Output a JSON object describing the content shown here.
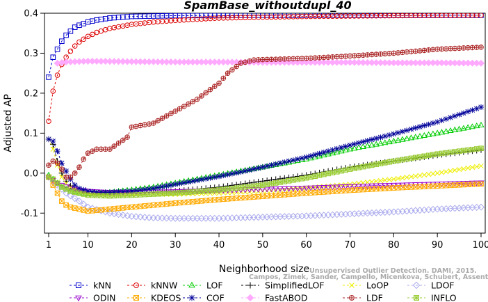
{
  "chart_data": {
    "type": "line",
    "title": "SpamBase_withoutdupl_40",
    "xlabel": "Neighborhood size",
    "ylabel": "Adjusted AP",
    "xlim": [
      1,
      100
    ],
    "ylim": [
      -0.15,
      0.4
    ],
    "xticks": [
      1,
      10,
      20,
      30,
      40,
      50,
      60,
      70,
      80,
      90,
      100
    ],
    "yticks": [
      -0.1,
      0.0,
      0.1,
      0.2,
      0.3,
      0.4
    ],
    "xtick_labels": [
      "1",
      "10",
      "20",
      "30",
      "40",
      "50",
      "60",
      "70",
      "80",
      "90",
      "100"
    ],
    "ytick_labels": [
      "-0.1",
      "0.0",
      "0.1",
      "0.2",
      "0.3",
      "0.4"
    ],
    "grid": false,
    "legend_position": "bottom",
    "series": [
      {
        "name": "kNN",
        "color": "#0000cc",
        "marker": "square",
        "linestyle": "dashed",
        "points": [
          [
            1,
            0.24
          ],
          [
            2,
            0.29
          ],
          [
            3,
            0.31
          ],
          [
            4,
            0.33
          ],
          [
            5,
            0.345
          ],
          [
            6,
            0.355
          ],
          [
            7,
            0.365
          ],
          [
            8,
            0.37
          ],
          [
            10,
            0.378
          ],
          [
            12,
            0.383
          ],
          [
            15,
            0.388
          ],
          [
            20,
            0.392
          ],
          [
            30,
            0.394
          ],
          [
            50,
            0.395
          ],
          [
            100,
            0.395
          ]
        ]
      },
      {
        "name": "kNNW",
        "color": "#dd0000",
        "marker": "circle",
        "linestyle": "dashed",
        "points": [
          [
            1,
            0.13
          ],
          [
            2,
            0.205
          ],
          [
            3,
            0.245
          ],
          [
            4,
            0.272
          ],
          [
            5,
            0.29
          ],
          [
            6,
            0.305
          ],
          [
            7,
            0.318
          ],
          [
            8,
            0.328
          ],
          [
            10,
            0.342
          ],
          [
            12,
            0.352
          ],
          [
            15,
            0.362
          ],
          [
            20,
            0.372
          ],
          [
            25,
            0.378
          ],
          [
            30,
            0.382
          ],
          [
            40,
            0.388
          ],
          [
            50,
            0.39
          ],
          [
            60,
            0.392
          ],
          [
            80,
            0.394
          ],
          [
            100,
            0.395
          ]
        ]
      },
      {
        "name": "LOF",
        "color": "#00cc00",
        "marker": "triangle-up",
        "linestyle": "dashed",
        "points": [
          [
            1,
            -0.005
          ],
          [
            2,
            -0.015
          ],
          [
            3,
            -0.025
          ],
          [
            4,
            -0.035
          ],
          [
            5,
            -0.04
          ],
          [
            6,
            -0.045
          ],
          [
            8,
            -0.05
          ],
          [
            10,
            -0.052
          ],
          [
            12,
            -0.05
          ],
          [
            15,
            -0.048
          ],
          [
            20,
            -0.042
          ],
          [
            25,
            -0.035
          ],
          [
            30,
            -0.025
          ],
          [
            35,
            -0.015
          ],
          [
            40,
            -0.005
          ],
          [
            45,
            0.005
          ],
          [
            50,
            0.015
          ],
          [
            60,
            0.035
          ],
          [
            70,
            0.06
          ],
          [
            80,
            0.08
          ],
          [
            90,
            0.1
          ],
          [
            100,
            0.12
          ]
        ]
      },
      {
        "name": "SimplifiedLOF",
        "color": "#000000",
        "marker": "plus",
        "linestyle": "dashed",
        "points": [
          [
            1,
            0.085
          ],
          [
            2,
            0.072
          ],
          [
            3,
            0.03
          ],
          [
            4,
            0.0
          ],
          [
            5,
            -0.02
          ],
          [
            6,
            -0.032
          ],
          [
            7,
            -0.04
          ],
          [
            8,
            -0.045
          ],
          [
            10,
            -0.05
          ],
          [
            12,
            -0.052
          ],
          [
            15,
            -0.052
          ],
          [
            20,
            -0.05
          ],
          [
            30,
            -0.045
          ],
          [
            40,
            -0.035
          ],
          [
            50,
            -0.02
          ],
          [
            60,
            -0.005
          ],
          [
            70,
            0.015
          ],
          [
            80,
            0.03
          ],
          [
            90,
            0.045
          ],
          [
            100,
            0.058
          ]
        ]
      },
      {
        "name": "LoOP",
        "color": "#eeee00",
        "marker": "x",
        "linestyle": "dashed",
        "points": [
          [
            1,
            0.085
          ],
          [
            2,
            0.06
          ],
          [
            3,
            0.02
          ],
          [
            4,
            -0.01
          ],
          [
            5,
            -0.025
          ],
          [
            6,
            -0.035
          ],
          [
            8,
            -0.045
          ],
          [
            10,
            -0.05
          ],
          [
            15,
            -0.052
          ],
          [
            20,
            -0.053
          ],
          [
            30,
            -0.053
          ],
          [
            40,
            -0.05
          ],
          [
            50,
            -0.045
          ],
          [
            60,
            -0.037
          ],
          [
            70,
            -0.028
          ],
          [
            80,
            -0.015
          ],
          [
            90,
            0.0
          ],
          [
            100,
            0.018
          ]
        ]
      },
      {
        "name": "LDOF",
        "color": "#aaaaee",
        "marker": "diamond",
        "linestyle": "dashed",
        "points": [
          [
            1,
            -0.01
          ],
          [
            3,
            -0.03
          ],
          [
            5,
            -0.05
          ],
          [
            8,
            -0.07
          ],
          [
            10,
            -0.085
          ],
          [
            15,
            -0.1
          ],
          [
            20,
            -0.108
          ],
          [
            25,
            -0.112
          ],
          [
            30,
            -0.113
          ],
          [
            40,
            -0.113
          ],
          [
            50,
            -0.11
          ],
          [
            60,
            -0.107
          ],
          [
            70,
            -0.102
          ],
          [
            80,
            -0.097
          ],
          [
            90,
            -0.09
          ],
          [
            100,
            -0.085
          ]
        ]
      },
      {
        "name": "ODIN",
        "color": "#9900cc",
        "marker": "triangle-down",
        "linestyle": "dashed",
        "points": [
          [
            1,
            -0.01
          ],
          [
            2,
            -0.018
          ],
          [
            3,
            -0.025
          ],
          [
            4,
            -0.03
          ],
          [
            6,
            -0.038
          ],
          [
            8,
            -0.042
          ],
          [
            10,
            -0.045
          ],
          [
            15,
            -0.048
          ],
          [
            20,
            -0.048
          ],
          [
            30,
            -0.046
          ],
          [
            40,
            -0.043
          ],
          [
            50,
            -0.04
          ],
          [
            60,
            -0.037
          ],
          [
            70,
            -0.033
          ],
          [
            80,
            -0.03
          ],
          [
            90,
            -0.027
          ],
          [
            100,
            -0.024
          ]
        ]
      },
      {
        "name": "KDEOS",
        "color": "#ffaa00",
        "marker": "square-x",
        "linestyle": "dashed",
        "points": [
          [
            1,
            -0.01
          ],
          [
            2,
            -0.03
          ],
          [
            3,
            -0.05
          ],
          [
            4,
            -0.07
          ],
          [
            5,
            -0.08
          ],
          [
            6,
            -0.085
          ],
          [
            8,
            -0.09
          ],
          [
            10,
            -0.095
          ],
          [
            12,
            -0.093
          ],
          [
            15,
            -0.09
          ],
          [
            20,
            -0.085
          ],
          [
            30,
            -0.075
          ],
          [
            40,
            -0.066
          ],
          [
            50,
            -0.058
          ],
          [
            60,
            -0.05
          ],
          [
            70,
            -0.043
          ],
          [
            80,
            -0.037
          ],
          [
            90,
            -0.032
          ],
          [
            100,
            -0.027
          ]
        ]
      },
      {
        "name": "COF",
        "color": "#000099",
        "marker": "asterisk",
        "linestyle": "dashed",
        "points": [
          [
            1,
            0.085
          ],
          [
            2,
            0.08
          ],
          [
            3,
            0.055
          ],
          [
            4,
            0.025
          ],
          [
            5,
            0.005
          ],
          [
            6,
            -0.015
          ],
          [
            7,
            -0.03
          ],
          [
            8,
            -0.038
          ],
          [
            10,
            -0.045
          ],
          [
            12,
            -0.048
          ],
          [
            15,
            -0.048
          ],
          [
            20,
            -0.045
          ],
          [
            25,
            -0.038
          ],
          [
            30,
            -0.028
          ],
          [
            35,
            -0.018
          ],
          [
            40,
            -0.008
          ],
          [
            45,
            0.003
          ],
          [
            50,
            0.015
          ],
          [
            60,
            0.04
          ],
          [
            70,
            0.07
          ],
          [
            80,
            0.098
          ],
          [
            90,
            0.128
          ],
          [
            100,
            0.165
          ]
        ]
      },
      {
        "name": "FastABOD",
        "color": "#ffaaff",
        "marker": "diamond-filled",
        "linestyle": "dashed",
        "points": [
          [
            3,
            0.275
          ],
          [
            5,
            0.278
          ],
          [
            10,
            0.28
          ],
          [
            20,
            0.279
          ],
          [
            30,
            0.278
          ],
          [
            40,
            0.278
          ],
          [
            50,
            0.277
          ],
          [
            60,
            0.277
          ],
          [
            70,
            0.277
          ],
          [
            80,
            0.276
          ],
          [
            90,
            0.276
          ],
          [
            100,
            0.275
          ]
        ]
      },
      {
        "name": "LDF",
        "color": "#aa2222",
        "marker": "circle-plus",
        "linestyle": "dashed",
        "points": [
          [
            1,
            0.02
          ],
          [
            2,
            0.03
          ],
          [
            3,
            0.025
          ],
          [
            4,
            0.01
          ],
          [
            5,
            -0.01
          ],
          [
            6,
            -0.01
          ],
          [
            7,
            0.0
          ],
          [
            8,
            0.015
          ],
          [
            9,
            0.035
          ],
          [
            10,
            0.05
          ],
          [
            12,
            0.06
          ],
          [
            15,
            0.06
          ],
          [
            17,
            0.075
          ],
          [
            19,
            0.09
          ],
          [
            20,
            0.115
          ],
          [
            25,
            0.125
          ],
          [
            30,
            0.155
          ],
          [
            35,
            0.185
          ],
          [
            40,
            0.225
          ],
          [
            42,
            0.25
          ],
          [
            45,
            0.275
          ],
          [
            48,
            0.283
          ],
          [
            50,
            0.284
          ],
          [
            60,
            0.287
          ],
          [
            70,
            0.293
          ],
          [
            80,
            0.3
          ],
          [
            90,
            0.31
          ],
          [
            100,
            0.315
          ]
        ]
      },
      {
        "name": "INFLO",
        "color": "#99cc33",
        "marker": "square-asterisk",
        "linestyle": "dashed",
        "points": [
          [
            1,
            -0.01
          ],
          [
            2,
            -0.015
          ],
          [
            3,
            -0.025
          ],
          [
            4,
            -0.035
          ],
          [
            6,
            -0.045
          ],
          [
            8,
            -0.05
          ],
          [
            10,
            -0.055
          ],
          [
            15,
            -0.057
          ],
          [
            20,
            -0.055
          ],
          [
            30,
            -0.05
          ],
          [
            40,
            -0.042
          ],
          [
            50,
            -0.03
          ],
          [
            60,
            -0.012
          ],
          [
            70,
            0.01
          ],
          [
            80,
            0.03
          ],
          [
            90,
            0.048
          ],
          [
            100,
            0.062
          ]
        ]
      }
    ]
  },
  "watermark": {
    "line1": "Unsupervised Outlier Detection. DAMI, 2015.",
    "line2": "Campos, Zimek, Sander, Campello, Micenkova, Schubert, Assent, Houle"
  }
}
